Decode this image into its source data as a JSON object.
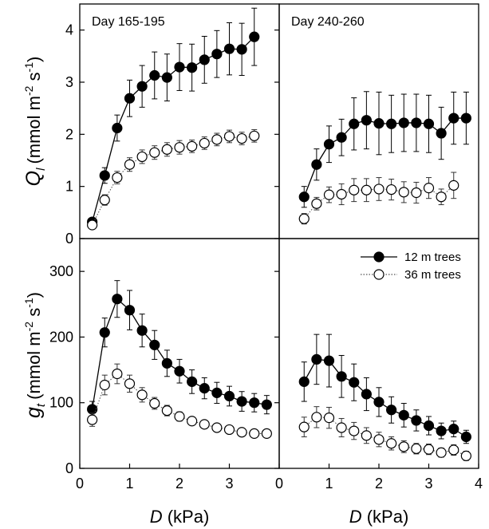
{
  "figure": {
    "ylabel_top_symbol": "Q",
    "ylabel_top_sub": "l",
    "ylabel_top_unit": "(mmol m",
    "ylabel_top_exp1": "-2",
    "ylabel_top_mid": " s",
    "ylabel_top_exp2": "-1",
    "ylabel_top_close": ")",
    "ylabel_bottom_symbol": "g",
    "ylabel_bottom_sub": "t",
    "ylabel_bottom_unit": "(mmol m",
    "ylabel_bottom_exp1": "-2",
    "ylabel_bottom_mid": " s",
    "ylabel_bottom_exp2": "-1",
    "ylabel_bottom_close": ")",
    "xlabel_symbol": "D",
    "xlabel_unit": " (kPa)"
  },
  "legend": {
    "series1": "12 m trees",
    "series2": "36 m trees"
  },
  "chart_data": [
    {
      "type": "scatter",
      "panel": "top-left",
      "title": "Day 165-195",
      "xlim": [
        0,
        4
      ],
      "ylim": [
        0,
        4.5
      ],
      "yticks": [
        0,
        1,
        2,
        3,
        4
      ],
      "series": [
        {
          "name": "12 m trees",
          "marker": "filled",
          "line": "solid",
          "x": [
            0.25,
            0.5,
            0.75,
            1.0,
            1.25,
            1.5,
            1.75,
            2.0,
            2.25,
            2.5,
            2.75,
            3.0,
            3.25,
            3.5
          ],
          "y": [
            0.32,
            1.21,
            2.12,
            2.69,
            2.92,
            3.13,
            3.09,
            3.29,
            3.28,
            3.43,
            3.54,
            3.64,
            3.63,
            3.87
          ],
          "err": [
            0.05,
            0.15,
            0.25,
            0.35,
            0.4,
            0.45,
            0.45,
            0.45,
            0.45,
            0.45,
            0.45,
            0.5,
            0.5,
            0.55
          ]
        },
        {
          "name": "36 m trees",
          "marker": "open",
          "line": "dotted",
          "x": [
            0.25,
            0.5,
            0.75,
            1.0,
            1.25,
            1.5,
            1.75,
            2.0,
            2.25,
            2.5,
            2.75,
            3.0,
            3.25,
            3.5
          ],
          "y": [
            0.26,
            0.74,
            1.17,
            1.42,
            1.57,
            1.65,
            1.71,
            1.75,
            1.77,
            1.83,
            1.9,
            1.96,
            1.92,
            1.97
          ],
          "err": [
            0.04,
            0.1,
            0.12,
            0.13,
            0.13,
            0.13,
            0.13,
            0.13,
            0.12,
            0.12,
            0.12,
            0.12,
            0.12,
            0.12
          ]
        }
      ]
    },
    {
      "type": "scatter",
      "panel": "top-right",
      "title": "Day 240-260",
      "xlim": [
        0,
        4
      ],
      "ylim": [
        0,
        4.5
      ],
      "series": [
        {
          "name": "12 m trees",
          "marker": "filled",
          "line": "solid",
          "x": [
            0.5,
            0.75,
            1.0,
            1.25,
            1.5,
            1.75,
            2.0,
            2.25,
            2.5,
            2.75,
            3.0,
            3.25,
            3.5,
            3.75
          ],
          "y": [
            0.8,
            1.42,
            1.81,
            1.94,
            2.2,
            2.27,
            2.21,
            2.2,
            2.22,
            2.22,
            2.2,
            2.02,
            2.31,
            2.31
          ],
          "err": [
            0.2,
            0.3,
            0.35,
            0.35,
            0.5,
            0.55,
            0.6,
            0.55,
            0.55,
            0.55,
            0.55,
            0.5,
            0.5,
            0.5
          ]
        },
        {
          "name": "36 m trees",
          "marker": "open",
          "line": "dotted",
          "x": [
            0.5,
            0.75,
            1.0,
            1.25,
            1.5,
            1.75,
            2.0,
            2.25,
            2.5,
            2.75,
            3.0,
            3.25,
            3.5
          ],
          "y": [
            0.38,
            0.67,
            0.84,
            0.85,
            0.93,
            0.93,
            0.95,
            0.94,
            0.89,
            0.88,
            0.97,
            0.8,
            1.02
          ],
          "err": [
            0.1,
            0.12,
            0.15,
            0.2,
            0.22,
            0.22,
            0.22,
            0.2,
            0.2,
            0.2,
            0.2,
            0.15,
            0.25
          ]
        }
      ]
    },
    {
      "type": "scatter",
      "panel": "bottom-left",
      "title": "",
      "xlim": [
        0,
        4
      ],
      "ylim": [
        0,
        350
      ],
      "yticks": [
        0,
        100,
        200,
        300
      ],
      "xticks": [
        0,
        1,
        2,
        3
      ],
      "series": [
        {
          "name": "12 m trees",
          "marker": "filled",
          "line": "solid",
          "x": [
            0.25,
            0.5,
            0.75,
            1.0,
            1.25,
            1.5,
            1.75,
            2.0,
            2.25,
            2.5,
            2.75,
            3.0,
            3.25,
            3.5,
            3.75
          ],
          "y": [
            90,
            207,
            258,
            241,
            210,
            188,
            160,
            148,
            132,
            122,
            115,
            110,
            102,
            100,
            97
          ],
          "err": [
            12,
            22,
            28,
            30,
            25,
            22,
            20,
            18,
            18,
            16,
            16,
            15,
            15,
            14,
            14
          ]
        },
        {
          "name": "36 m trees",
          "marker": "open",
          "line": "dotted",
          "x": [
            0.25,
            0.5,
            0.75,
            1.0,
            1.25,
            1.5,
            1.75,
            2.0,
            2.25,
            2.5,
            2.75,
            3.0,
            3.25,
            3.5,
            3.75
          ],
          "y": [
            74,
            127,
            144,
            129,
            112,
            99,
            88,
            79,
            72,
            67,
            62,
            59,
            55,
            53,
            53
          ],
          "err": [
            10,
            15,
            15,
            13,
            11,
            9,
            8,
            7,
            6,
            6,
            6,
            5,
            5,
            5,
            5
          ]
        }
      ]
    },
    {
      "type": "scatter",
      "panel": "bottom-right",
      "title": "",
      "xlim": [
        0,
        4
      ],
      "ylim": [
        0,
        350
      ],
      "xticks": [
        0,
        1,
        2,
        3,
        4
      ],
      "series": [
        {
          "name": "12 m trees",
          "marker": "filled",
          "line": "solid",
          "x": [
            0.5,
            0.75,
            1.0,
            1.25,
            1.5,
            1.75,
            2.0,
            2.25,
            2.5,
            2.75,
            3.0,
            3.25,
            3.5,
            3.75
          ],
          "y": [
            132,
            166,
            164,
            140,
            131,
            113,
            101,
            89,
            81,
            73,
            65,
            57,
            60,
            48
          ],
          "err": [
            30,
            38,
            40,
            32,
            28,
            25,
            22,
            20,
            18,
            16,
            14,
            12,
            12,
            10
          ]
        },
        {
          "name": "36 m trees",
          "marker": "open",
          "line": "dotted",
          "x": [
            0.5,
            0.75,
            1.0,
            1.25,
            1.5,
            1.75,
            2.0,
            2.25,
            2.5,
            2.75,
            3.0,
            3.25,
            3.5,
            3.75
          ],
          "y": [
            63,
            78,
            77,
            62,
            57,
            50,
            44,
            38,
            33,
            30,
            29,
            24,
            28,
            19
          ],
          "err": [
            15,
            16,
            16,
            14,
            13,
            12,
            11,
            10,
            9,
            8,
            8,
            7,
            8,
            7
          ]
        }
      ]
    }
  ]
}
